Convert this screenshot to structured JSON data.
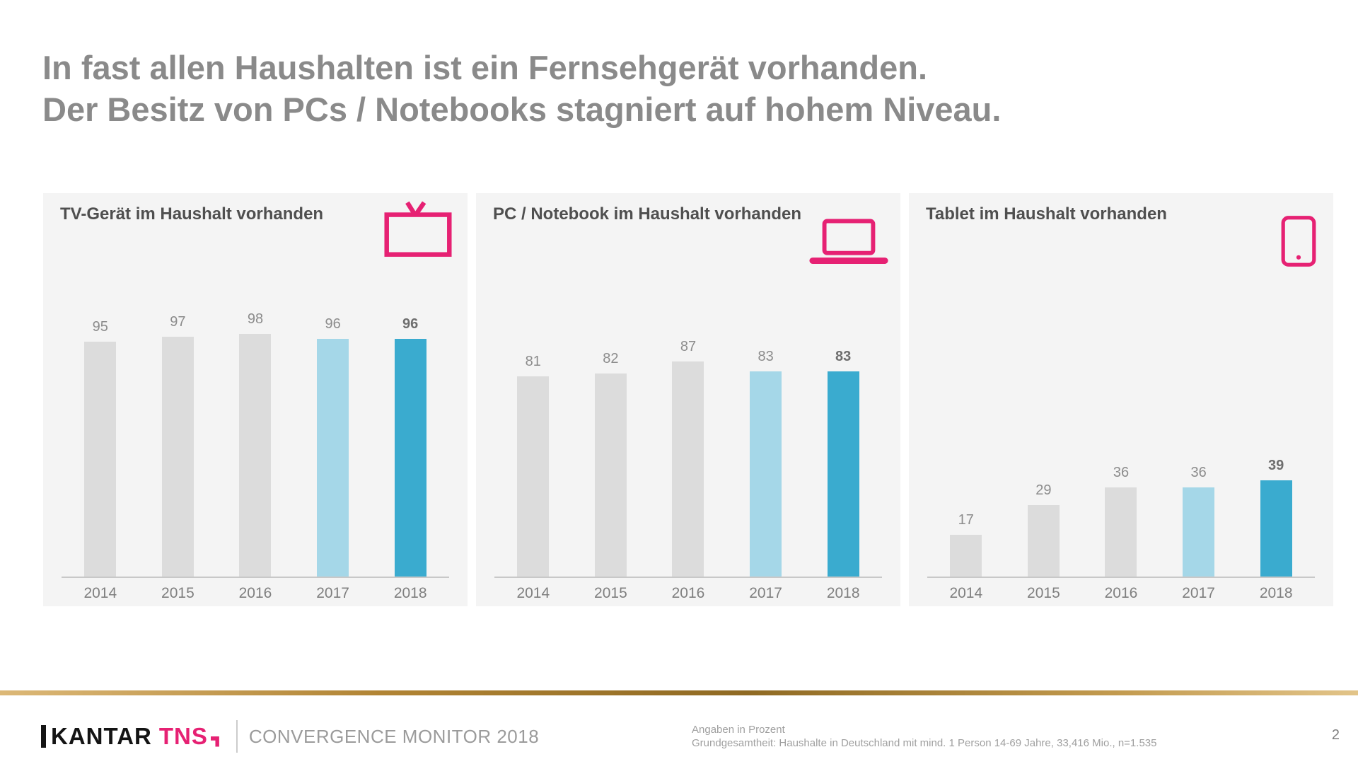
{
  "slide": {
    "title_line1": "In fast allen Haushalten ist ein Fernsehgerät vorhanden.",
    "title_line2": "Der Besitz von PCs / Notebooks stagniert auf hohem Niveau.",
    "page_number": "2"
  },
  "footer": {
    "brand_kantar": "KANTAR",
    "brand_tns": "TNS",
    "subtitle": "CONVERGENCE MONITOR 2018",
    "note_line1": "Angaben in Prozent",
    "note_line2": "Grundgesamtheit: Haushalte in Deutschland mit mind. 1 Person 14-69 Jahre, 33,416 Mio.,  n=1.535"
  },
  "colors": {
    "accent_pink": "#e62173",
    "bar_default": "#dcdcdc",
    "bar_2017": "#a5d7e8",
    "bar_2018": "#3aabcf",
    "title_gray": "#8a8a8a",
    "gold_line": "#9c7a33"
  },
  "chart_data": [
    {
      "type": "bar",
      "title": "TV-Gerät im Haushalt vorhanden",
      "icon": "tv-icon",
      "categories": [
        "2014",
        "2015",
        "2016",
        "2017",
        "2018"
      ],
      "values": [
        95,
        97,
        98,
        96,
        96
      ],
      "unit": "percent",
      "ylim": [
        0,
        100
      ],
      "legend_position": "none",
      "grid": false
    },
    {
      "type": "bar",
      "title": "PC / Notebook im Haushalt vorhanden",
      "icon": "laptop-icon",
      "categories": [
        "2014",
        "2015",
        "2016",
        "2017",
        "2018"
      ],
      "values": [
        81,
        82,
        87,
        83,
        83
      ],
      "unit": "percent",
      "ylim": [
        0,
        100
      ],
      "legend_position": "none",
      "grid": false
    },
    {
      "type": "bar",
      "title": "Tablet im Haushalt vorhanden",
      "icon": "tablet-icon",
      "categories": [
        "2014",
        "2015",
        "2016",
        "2017",
        "2018"
      ],
      "values": [
        17,
        29,
        36,
        36,
        39
      ],
      "unit": "percent",
      "ylim": [
        0,
        100
      ],
      "legend_position": "none",
      "grid": false
    }
  ]
}
